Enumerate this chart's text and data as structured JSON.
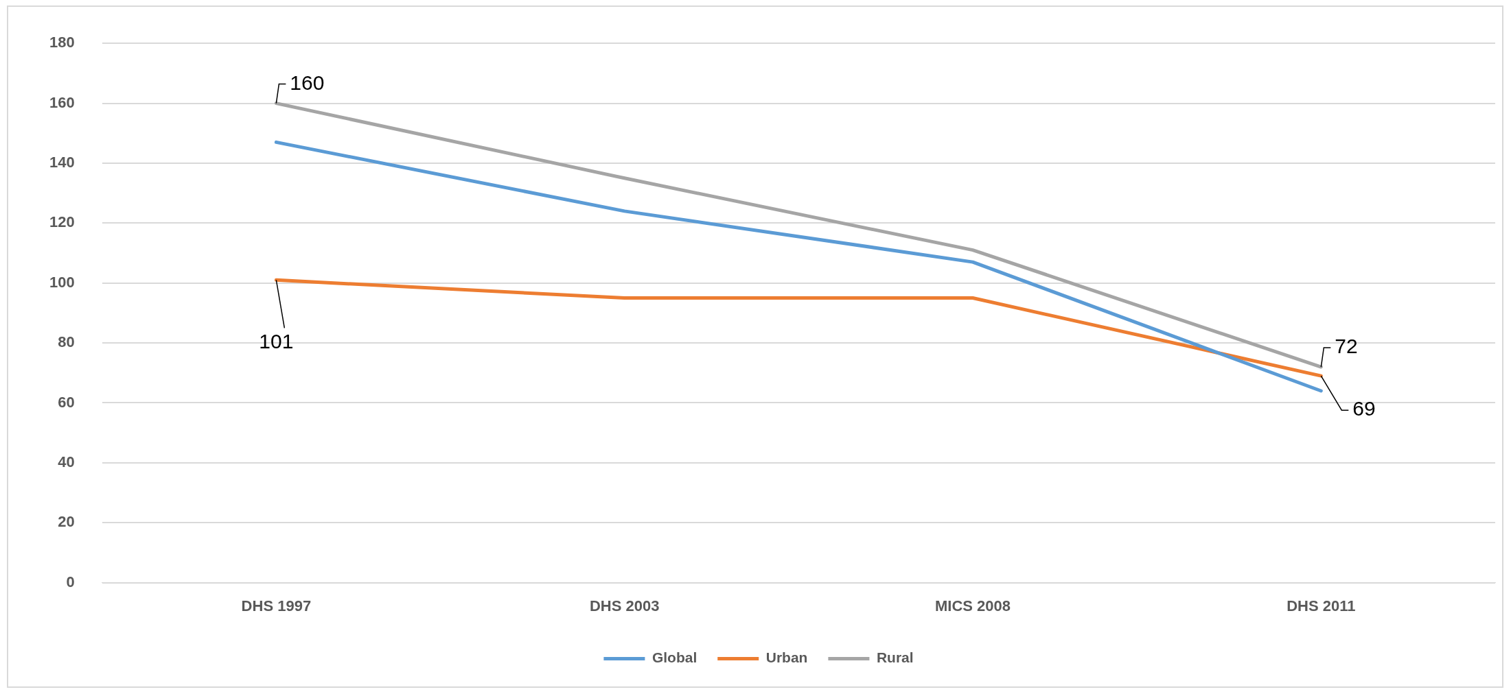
{
  "chart_data": {
    "type": "line",
    "categories": [
      "DHS 1997",
      "DHS 2003",
      "MICS 2008",
      "DHS 2011"
    ],
    "series": [
      {
        "name": "Global",
        "color": "#5b9bd5",
        "values": [
          147,
          124,
          107,
          64
        ]
      },
      {
        "name": "Urban",
        "color": "#ed7d31",
        "values": [
          101,
          95,
          95,
          69
        ],
        "value_labels": [
          "101",
          null,
          null,
          "69"
        ]
      },
      {
        "name": "Rural",
        "color": "#a5a5a5",
        "values": [
          160,
          135,
          111,
          72
        ],
        "value_labels": [
          "160",
          null,
          null,
          "72"
        ]
      }
    ],
    "ylim": [
      0,
      180
    ],
    "yticks": [
      0,
      20,
      40,
      60,
      80,
      100,
      120,
      140,
      160,
      180
    ],
    "grid": "y",
    "legend": "bottom",
    "marker": "none",
    "line_style": "solid"
  }
}
